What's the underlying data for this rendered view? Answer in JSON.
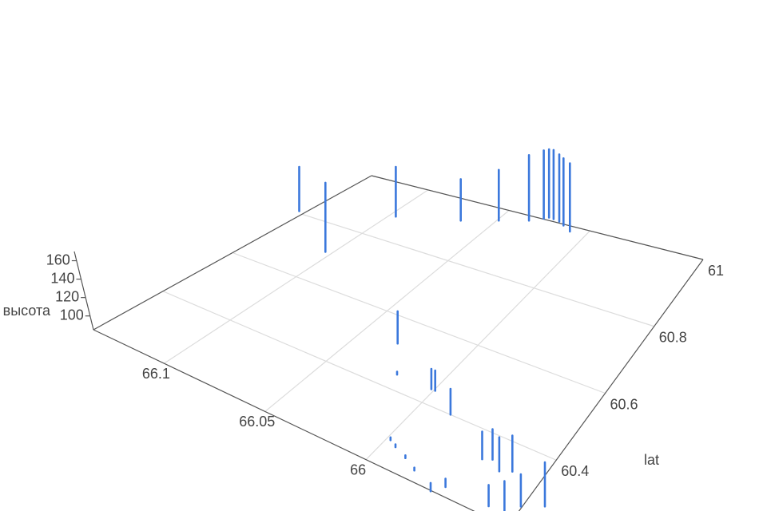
{
  "chart_data": {
    "type": "scatter3d",
    "zaxis_title": "высота",
    "yaxis_title": "lat",
    "xlim": [
      65.93,
      66.135
    ],
    "ylim": [
      60.2,
      61.0
    ],
    "zlim": [
      85,
      170
    ],
    "xticks": [
      {
        "value": 66.1,
        "label": "66.1"
      },
      66.05,
      66
    ],
    "yticks": [
      60.4,
      60.6,
      60.8,
      61
    ],
    "zticks": [
      100,
      120,
      140,
      160
    ],
    "grid": true,
    "series": [
      {
        "color": "#3b78dc",
        "x": [
          66.132,
          66.132,
          null,
          66.098,
          66.098,
          null,
          66.091,
          66.091,
          null,
          66.061,
          66.061,
          null,
          66.044,
          66.044,
          null,
          66.03,
          66.03,
          null,
          66.024,
          66.024,
          null,
          66.022,
          66.022,
          null,
          66.019,
          66.019,
          null,
          66.015,
          66.015,
          null,
          66.011,
          66.011,
          null,
          66.005,
          66.005,
          null,
          66.028,
          66.028,
          null,
          66.016,
          66.016,
          null,
          65.998,
          65.998,
          null,
          65.996,
          65.996,
          null,
          65.982,
          65.982,
          null,
          65.956,
          65.956,
          null,
          65.952,
          65.952,
          null,
          65.946,
          65.946,
          null,
          65.941,
          65.941,
          null,
          65.94,
          65.94,
          null,
          65.933,
          65.933,
          null,
          65.928,
          65.928,
          null,
          65.919,
          65.919,
          null,
          65.995,
          65.995,
          null,
          65.991,
          65.991,
          null,
          65.984,
          65.984,
          null,
          65.977,
          65.977,
          null,
          65.965,
          65.965,
          null,
          65.961,
          65.961
        ],
        "y": [
          60.777,
          60.777,
          null,
          60.678,
          60.678,
          null,
          60.856,
          60.856,
          null,
          60.902,
          60.902,
          null,
          60.934,
          60.934,
          null,
          60.958,
          60.958,
          null,
          60.975,
          60.975,
          null,
          60.982,
          60.982,
          null,
          60.981,
          60.981,
          null,
          60.978,
          60.978,
          null,
          60.97,
          60.97,
          null,
          60.958,
          60.958,
          null,
          60.5,
          60.5,
          null,
          60.42,
          60.42,
          null,
          60.42,
          60.42,
          null,
          60.42,
          60.42,
          null,
          60.378,
          60.378,
          null,
          60.306,
          60.306,
          null,
          60.316,
          60.316,
          null,
          60.296,
          60.296,
          null,
          60.309,
          60.309,
          null,
          60.206,
          60.206,
          null,
          60.213,
          60.213,
          null,
          60.239,
          60.239,
          null,
          60.264,
          60.264,
          null,
          60.252,
          60.252,
          null,
          60.241,
          60.241,
          null,
          60.226,
          60.226,
          null,
          60.207,
          60.207,
          null,
          60.177,
          60.177,
          null,
          60.203,
          60.203
        ],
        "z": [
          95,
          143,
          null,
          95,
          170,
          null,
          95,
          149,
          null,
          95,
          140,
          null,
          95,
          150,
          null,
          95,
          166,
          null,
          95,
          169,
          null,
          95,
          169,
          null,
          95,
          170,
          null,
          95,
          168,
          null,
          95,
          168,
          null,
          95,
          169,
          null,
          95,
          130,
          null,
          95,
          98,
          null,
          95,
          117,
          null,
          95,
          117,
          null,
          95,
          123,
          null,
          95,
          125,
          null,
          95,
          128,
          null,
          95,
          132,
          null,
          95,
          134,
          null,
          95,
          118,
          null,
          95,
          127,
          null,
          95,
          130,
          null,
          95,
          143,
          null,
          95,
          98,
          null,
          95,
          98,
          null,
          95,
          98,
          null,
          95,
          98,
          null,
          95,
          104,
          null,
          95,
          104
        ]
      }
    ]
  }
}
